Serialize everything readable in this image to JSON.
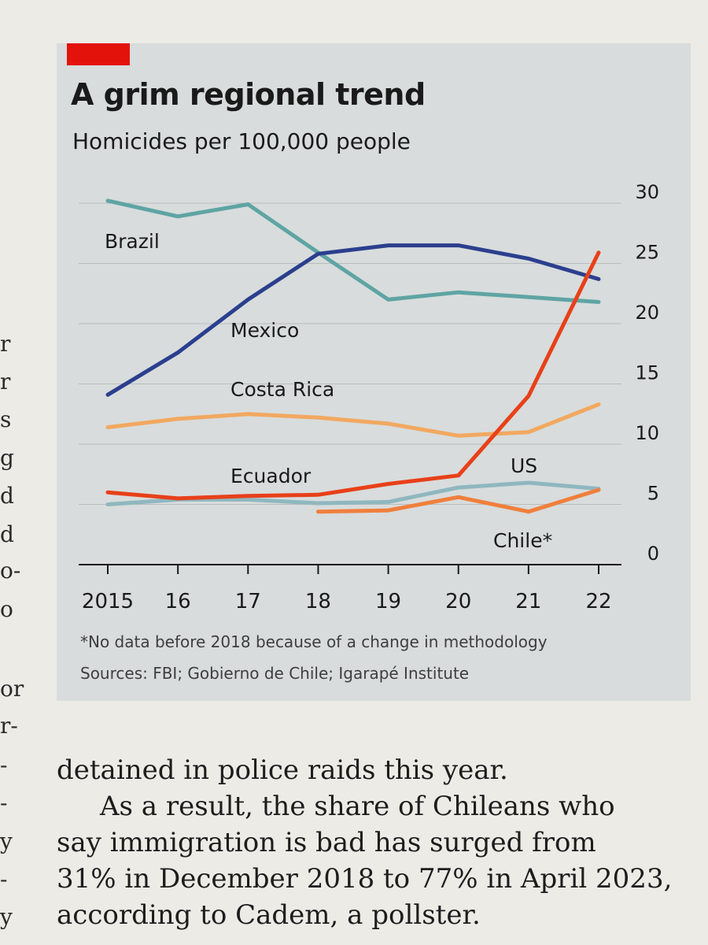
{
  "chart_data": {
    "type": "line",
    "title": "A grim regional trend",
    "subtitle": "Homicides per 100,000 people",
    "x": [
      2015,
      2016,
      2017,
      2018,
      2019,
      2020,
      2021,
      2022
    ],
    "x_tick_labels": [
      "2015",
      "16",
      "17",
      "18",
      "19",
      "20",
      "21",
      "22"
    ],
    "y_ticks": [
      0,
      5,
      10,
      15,
      20,
      25,
      30
    ],
    "ylim": [
      0,
      30
    ],
    "y_axis_side": "right",
    "grid": true,
    "legend": "inline labels",
    "series": [
      {
        "name": "Brazil",
        "color": "#5fa4a4",
        "values": [
          30.2,
          28.9,
          29.9,
          25.9,
          22.0,
          22.6,
          22.2,
          21.8
        ]
      },
      {
        "name": "Mexico",
        "color": "#2b3f8e",
        "values": [
          14.1,
          17.6,
          22.0,
          25.8,
          26.5,
          26.5,
          25.4,
          23.7
        ]
      },
      {
        "name": "Costa Rica",
        "color": "#f2a860",
        "values": [
          11.4,
          12.1,
          12.5,
          12.2,
          11.7,
          10.7,
          11.0,
          13.3
        ]
      },
      {
        "name": "Ecuador",
        "color": "#e84019",
        "values": [
          6.0,
          5.5,
          5.7,
          5.8,
          6.7,
          7.4,
          14.0,
          25.9
        ]
      },
      {
        "name": "US",
        "color": "#8fb7bf",
        "values": [
          5.0,
          5.4,
          5.4,
          5.1,
          5.2,
          6.4,
          6.8,
          6.3
        ]
      },
      {
        "name": "Chile*",
        "color": "#f07f3c",
        "values": [
          null,
          null,
          null,
          4.4,
          4.5,
          5.6,
          4.4,
          6.2
        ]
      }
    ],
    "series_label_text": {
      "brazil": "Brazil",
      "mexico": "Mexico",
      "costa_rica": "Costa Rica",
      "ecuador": "Ecuador",
      "us": "US",
      "chile": "Chile*"
    },
    "footnote": "*No data before 2018 because of a change in methodology",
    "source": "Sources: FBI; Gobierno de Chile; Igarapé Institute"
  },
  "accent_color": "#e3120b",
  "article": {
    "lines": [
      "detained in police raids this year.",
      "As a result, the share of Chileans who",
      "say immigration is bad has surged from",
      "31% in December 2018 to 77% in April 2023,",
      "according to Cadem, a pollster."
    ]
  },
  "left_column": {
    "fragments": [
      "r",
      "r",
      "s",
      "g",
      "d",
      "d",
      "o-",
      "o",
      "or",
      "r-",
      "-",
      "-",
      "y",
      "-",
      "y"
    ]
  }
}
